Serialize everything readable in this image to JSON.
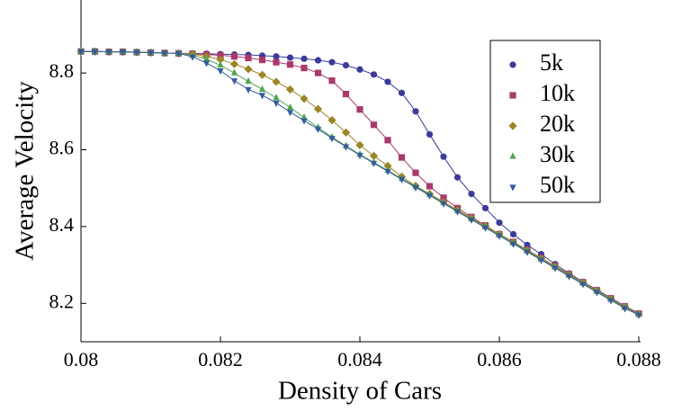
{
  "chart_data": {
    "type": "line",
    "x_label": "Density of Cars",
    "y_label": "Average Velocity",
    "x": [
      0.08,
      0.0802,
      0.0804,
      0.0806,
      0.0808,
      0.081,
      0.0812,
      0.0814,
      0.0816,
      0.0818,
      0.082,
      0.0822,
      0.0824,
      0.0826,
      0.0828,
      0.083,
      0.0832,
      0.0834,
      0.0836,
      0.0838,
      0.084,
      0.0842,
      0.0844,
      0.0846,
      0.0848,
      0.085,
      0.0852,
      0.0854,
      0.0856,
      0.0858,
      0.086,
      0.0862,
      0.0864,
      0.0866,
      0.0868,
      0.087,
      0.0872,
      0.0874,
      0.0876,
      0.0878,
      0.088
    ],
    "series": [
      {
        "name": "5k",
        "color": "#3b3b9a",
        "marker": "circle",
        "values": [
          8.856,
          8.856,
          8.855,
          8.855,
          8.854,
          8.853,
          8.852,
          8.851,
          8.851,
          8.85,
          8.849,
          8.848,
          8.847,
          8.845,
          8.843,
          8.84,
          8.837,
          8.833,
          8.828,
          8.82,
          8.809,
          8.796,
          8.777,
          8.748,
          8.7,
          8.64,
          8.582,
          8.528,
          8.485,
          8.448,
          8.41,
          8.38,
          8.352,
          8.328,
          8.302,
          8.278,
          8.256,
          8.235,
          8.214,
          8.193,
          8.174
        ]
      },
      {
        "name": "10k",
        "color": "#a83a6c",
        "marker": "square",
        "values": [
          8.856,
          8.856,
          8.855,
          8.855,
          8.854,
          8.853,
          8.852,
          8.851,
          8.85,
          8.848,
          8.846,
          8.843,
          8.839,
          8.834,
          8.828,
          8.822,
          8.813,
          8.8,
          8.78,
          8.745,
          8.705,
          8.665,
          8.625,
          8.58,
          8.54,
          8.505,
          8.475,
          8.448,
          8.425,
          8.403,
          8.38,
          8.36,
          8.339,
          8.318,
          8.297,
          8.276,
          8.255,
          8.234,
          8.213,
          8.192,
          8.173
        ]
      },
      {
        "name": "20k",
        "color": "#9c8528",
        "marker": "diamond",
        "values": [
          8.856,
          8.856,
          8.855,
          8.855,
          8.854,
          8.853,
          8.852,
          8.851,
          8.849,
          8.843,
          8.835,
          8.823,
          8.81,
          8.795,
          8.777,
          8.757,
          8.733,
          8.706,
          8.677,
          8.645,
          8.612,
          8.584,
          8.558,
          8.53,
          8.506,
          8.485,
          8.464,
          8.443,
          8.422,
          8.401,
          8.38,
          8.359,
          8.338,
          8.317,
          8.296,
          8.275,
          8.254,
          8.233,
          8.212,
          8.191,
          8.172
        ]
      },
      {
        "name": "30k",
        "color": "#4fa352",
        "marker": "triangle-up",
        "values": [
          8.856,
          8.856,
          8.855,
          8.855,
          8.854,
          8.853,
          8.852,
          8.851,
          8.846,
          8.836,
          8.82,
          8.8,
          8.778,
          8.757,
          8.735,
          8.71,
          8.684,
          8.658,
          8.633,
          8.61,
          8.588,
          8.567,
          8.546,
          8.525,
          8.504,
          8.483,
          8.462,
          8.441,
          8.42,
          8.399,
          8.378,
          8.357,
          8.336,
          8.315,
          8.294,
          8.273,
          8.252,
          8.231,
          8.21,
          8.189,
          8.171
        ]
      },
      {
        "name": "50k",
        "color": "#355c9c",
        "marker": "triangle-down",
        "values": [
          8.856,
          8.856,
          8.855,
          8.855,
          8.854,
          8.853,
          8.852,
          8.851,
          8.842,
          8.826,
          8.806,
          8.78,
          8.757,
          8.742,
          8.722,
          8.698,
          8.676,
          8.654,
          8.63,
          8.608,
          8.586,
          8.565,
          8.544,
          8.523,
          8.502,
          8.481,
          8.46,
          8.439,
          8.418,
          8.397,
          8.376,
          8.355,
          8.334,
          8.313,
          8.292,
          8.271,
          8.25,
          8.229,
          8.208,
          8.187,
          8.17
        ]
      }
    ],
    "xlim": [
      0.08,
      0.088
    ],
    "xticks": [
      0.08,
      0.082,
      0.084,
      0.086,
      0.088
    ],
    "ylim": [
      8.1,
      8.99
    ],
    "yticks": [
      8.2,
      8.4,
      8.6,
      8.8
    ],
    "legend": "upper right"
  }
}
